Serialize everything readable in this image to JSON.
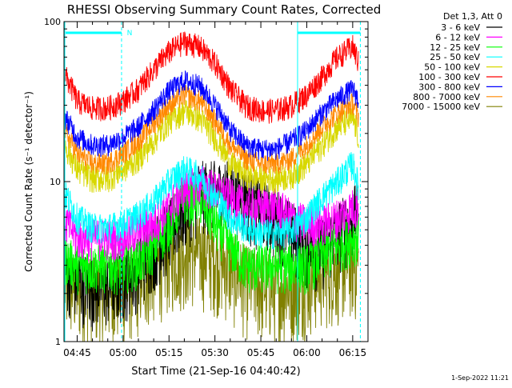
{
  "chart_data": {
    "type": "line",
    "title": "RHESSI Observing Summary Count Rates, Corrected",
    "xlabel": "Start Time (21-Sep-16 04:40:42)",
    "ylabel": "Corrected Count Rate (s⁻¹ detector⁻¹)",
    "yscale": "log",
    "ylim": [
      1,
      100
    ],
    "y_ticks": [
      1,
      10,
      100
    ],
    "x_range_minutes": [
      "04:40:42",
      "06:20:00"
    ],
    "x_ticks": [
      "04:45",
      "05:00",
      "05:15",
      "05:30",
      "05:45",
      "06:00",
      "06:15"
    ],
    "detector_header": "Det 1,3, Att 0",
    "footer_timestamp": "1-Sep-2022 11:21",
    "night_marker_label": "N",
    "series": [
      {
        "name": "3 - 6 keV",
        "color": "#000000"
      },
      {
        "name": "6 - 12 keV",
        "color": "#ff00ff"
      },
      {
        "name": "12 - 25 keV",
        "color": "#00ff00"
      },
      {
        "name": "25 - 50 keV",
        "color": "#00ffff"
      },
      {
        "name": "50 - 100 keV",
        "color": "#d8d800"
      },
      {
        "name": "100 - 300 keV",
        "color": "#ff0000"
      },
      {
        "name": "300 - 800 keV",
        "color": "#0000ff"
      },
      {
        "name": "800 - 7000 keV",
        "color": "#ff8800"
      },
      {
        "name": "7000 - 15000 keV",
        "color": "#808000"
      }
    ],
    "profiles": {
      "times": [
        "04:40",
        "04:45",
        "04:50",
        "04:55",
        "05:00",
        "05:05",
        "05:10",
        "05:15",
        "05:20",
        "05:25",
        "05:30",
        "05:35",
        "05:40",
        "05:45",
        "05:50",
        "05:55",
        "06:00",
        "06:05",
        "06:10",
        "06:15",
        "06:17"
      ],
      "100 - 300 keV": [
        50,
        32,
        29,
        29,
        32,
        38,
        50,
        65,
        75,
        70,
        55,
        38,
        30,
        28,
        28,
        30,
        35,
        45,
        60,
        70,
        55
      ],
      "300 - 800 keV": [
        27,
        19,
        17,
        17,
        19,
        22,
        28,
        37,
        43,
        40,
        30,
        21,
        17,
        16,
        16,
        18,
        21,
        27,
        33,
        38,
        32
      ],
      "800 - 7000 keV": [
        22,
        15,
        13,
        13,
        15,
        18,
        23,
        30,
        35,
        32,
        24,
        17,
        14,
        13,
        13,
        14,
        17,
        22,
        27,
        31,
        25
      ],
      "50 - 100 keV": [
        18,
        12,
        10.5,
        10.5,
        12,
        14,
        18,
        24,
        28,
        25,
        19,
        13,
        11,
        10.5,
        10.5,
        11,
        13,
        17,
        22,
        25,
        19
      ],
      "25 - 50 keV": [
        9,
        6,
        5.2,
        5.2,
        5.5,
        6.2,
        7.5,
        10,
        12,
        11,
        8,
        6,
        5.2,
        4.8,
        4.8,
        5,
        6,
        8,
        10,
        13,
        9
      ],
      "6 - 12 keV": [
        6,
        4.5,
        4.5,
        4.5,
        4.5,
        5,
        5.5,
        7,
        9,
        10,
        9,
        8,
        7,
        7,
        7,
        6,
        5.5,
        5.5,
        6,
        7,
        7
      ],
      "12 - 25 keV": [
        3.5,
        3,
        3,
        3,
        3,
        3.2,
        4,
        5.5,
        8,
        8,
        5.5,
        4,
        3,
        3,
        3,
        3,
        3,
        3.5,
        4,
        4.5,
        4.5
      ],
      "3 - 6 keV": [
        3,
        2.5,
        2.3,
        2.3,
        2.5,
        3,
        4,
        5,
        7,
        9,
        9,
        9,
        8,
        7,
        6,
        5,
        4,
        4,
        5,
        6,
        7
      ],
      "7000 - 15000 keV": [
        2.3,
        2.2,
        2.1,
        2.1,
        2.2,
        2.5,
        3,
        3.5,
        3.8,
        3.8,
        3.5,
        3,
        2.5,
        2.3,
        2.2,
        2.3,
        2.5,
        2.8,
        3,
        3.2,
        3
      ]
    }
  }
}
